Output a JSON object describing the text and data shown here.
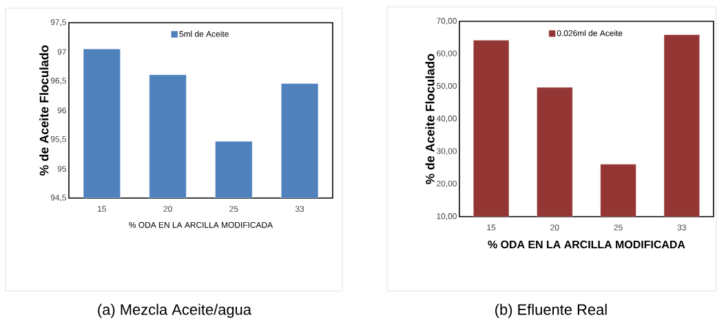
{
  "chart_data": [
    {
      "type": "bar",
      "categories": [
        "15",
        "20",
        "25",
        "33"
      ],
      "series": [
        {
          "name": "5ml de Aceite",
          "color": "#4f81bd",
          "values": [
            97.05,
            96.61,
            95.47,
            96.46
          ]
        }
      ],
      "ylim": [
        94.5,
        97.5
      ],
      "yticks": [
        {
          "value": 94.5,
          "label": "94,5"
        },
        95,
        {
          "value": 95.5,
          "label": "95,5"
        },
        96,
        {
          "value": 96.5,
          "label": "96,5"
        },
        97,
        {
          "value": 97.5,
          "label": "97,5"
        }
      ],
      "xlabel": "% ODA EN LA ARCILLA MODIFICADA",
      "ylabel": "% de Aceite Floculado",
      "legend": "top",
      "grid": false,
      "annotations": [
        "(a) Mezcla Aceite/agua"
      ]
    },
    {
      "type": "bar",
      "categories": [
        "15",
        "20",
        "25",
        "33"
      ],
      "series": [
        {
          "name": "0.026ml de Aceite",
          "color": "#943634",
          "values": [
            64.2,
            49.7,
            26.1,
            65.9
          ]
        }
      ],
      "ylim": [
        10,
        70
      ],
      "yticks": [
        {
          "value": 10,
          "label": "10,00"
        },
        {
          "value": 20,
          "label": "20,00"
        },
        {
          "value": 30,
          "label": "30,00"
        },
        {
          "value": 40,
          "label": "40,00"
        },
        {
          "value": 50,
          "label": "50,00"
        },
        {
          "value": 60,
          "label": "60,00"
        },
        {
          "value": 70,
          "label": "70,00"
        }
      ],
      "xlabel": "%  ODA  EN LA ARCILLA MODIFICADA",
      "ylabel": "% de Aceite Floculado",
      "legend": "top",
      "grid": false,
      "annotations": [
        "(b) Efluente Real"
      ]
    }
  ]
}
